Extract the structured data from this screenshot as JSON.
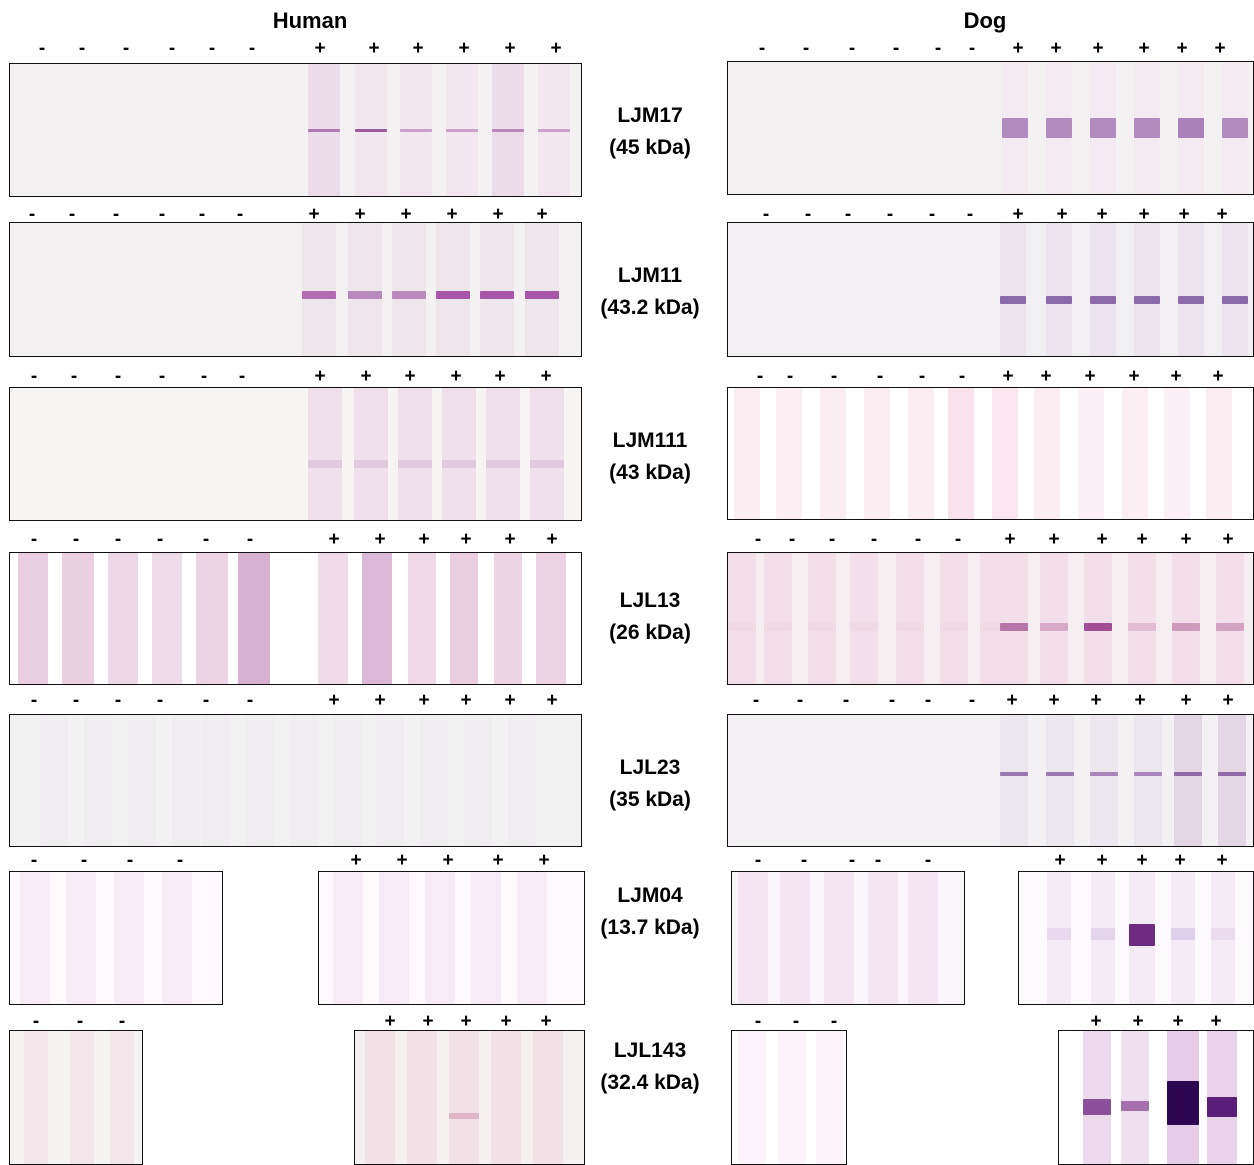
{
  "headers": {
    "left": "Human",
    "right": "Dog"
  },
  "signs": {
    "neg": "-",
    "pos": "+"
  },
  "proteins": [
    {
      "name": "LJM17",
      "size": "(45 kDa)"
    },
    {
      "name": "LJM11",
      "size": "(43.2 kDa)"
    },
    {
      "name": "LJM111",
      "size": "(43 kDa)"
    },
    {
      "name": "LJL13",
      "size": "(26 kDa)"
    },
    {
      "name": "LJL23",
      "size": "(35 kDa)"
    },
    {
      "name": "LJM04",
      "size": "(13.7 kDa)"
    },
    {
      "name": "LJL143",
      "size": "(32.4 kDa)"
    }
  ],
  "colors": {
    "membrane_gray": "#f3f1f1",
    "membrane_pink": "#fbf4f7",
    "lane_pink": "#f0d9e6",
    "lane_violet": "#d9b4d3",
    "band_purple": "#9b4d9b",
    "band_dark": "#3a0a5a"
  }
}
